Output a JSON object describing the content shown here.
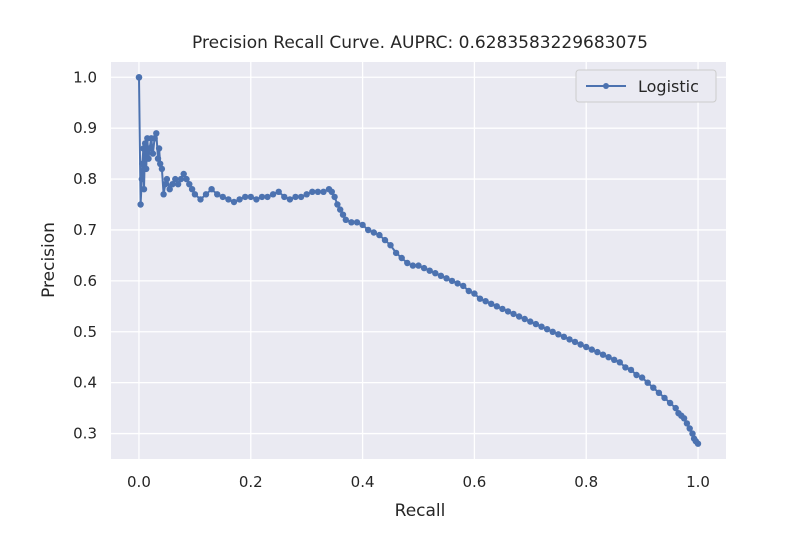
{
  "chart_data": {
    "type": "line",
    "title": "Precision Recall Curve. AUPRC: 0.6283583229683075",
    "xlabel": "Recall",
    "ylabel": "Precision",
    "xlim": [
      -0.05,
      1.05
    ],
    "ylim": [
      0.25,
      1.03
    ],
    "xticks": [
      0.0,
      0.2,
      0.4,
      0.6,
      0.8,
      1.0
    ],
    "xtick_labels": [
      "0.0",
      "0.2",
      "0.4",
      "0.6",
      "0.8",
      "1.0"
    ],
    "yticks": [
      0.3,
      0.4,
      0.5,
      0.6,
      0.7,
      0.8,
      0.9,
      1.0
    ],
    "ytick_labels": [
      "0.3",
      "0.4",
      "0.5",
      "0.6",
      "0.7",
      "0.8",
      "0.9",
      "1.0"
    ],
    "grid": true,
    "legend_position": "top-right",
    "colors": {
      "series": "#4c72b0",
      "background": "#eaeaf2",
      "grid": "#ffffff"
    },
    "series": [
      {
        "name": "Logistic",
        "marker": "circle",
        "x": [
          0.0,
          0.0,
          0.003,
          0.005,
          0.006,
          0.008,
          0.009,
          0.011,
          0.013,
          0.015,
          0.017,
          0.019,
          0.022,
          0.025,
          0.028,
          0.031,
          0.034,
          0.036,
          0.038,
          0.041,
          0.044,
          0.047,
          0.05,
          0.055,
          0.06,
          0.065,
          0.07,
          0.075,
          0.08,
          0.085,
          0.09,
          0.095,
          0.1,
          0.11,
          0.12,
          0.13,
          0.14,
          0.15,
          0.16,
          0.17,
          0.18,
          0.19,
          0.2,
          0.21,
          0.22,
          0.23,
          0.24,
          0.25,
          0.26,
          0.27,
          0.28,
          0.29,
          0.3,
          0.31,
          0.32,
          0.33,
          0.34,
          0.345,
          0.35,
          0.355,
          0.36,
          0.365,
          0.37,
          0.38,
          0.39,
          0.4,
          0.41,
          0.42,
          0.43,
          0.44,
          0.45,
          0.46,
          0.47,
          0.48,
          0.49,
          0.5,
          0.51,
          0.52,
          0.53,
          0.54,
          0.55,
          0.56,
          0.57,
          0.58,
          0.59,
          0.6,
          0.61,
          0.62,
          0.63,
          0.64,
          0.65,
          0.66,
          0.67,
          0.68,
          0.69,
          0.7,
          0.71,
          0.72,
          0.73,
          0.74,
          0.75,
          0.76,
          0.77,
          0.78,
          0.79,
          0.8,
          0.81,
          0.82,
          0.83,
          0.84,
          0.85,
          0.86,
          0.87,
          0.88,
          0.89,
          0.9,
          0.91,
          0.92,
          0.93,
          0.94,
          0.95,
          0.96,
          0.965,
          0.97,
          0.975,
          0.98,
          0.985,
          0.99,
          0.993,
          0.996,
          1.0
        ],
        "y": [
          1.0,
          1.0,
          0.75,
          0.8,
          0.83,
          0.86,
          0.78,
          0.87,
          0.82,
          0.88,
          0.84,
          0.86,
          0.88,
          0.85,
          0.88,
          0.89,
          0.84,
          0.86,
          0.83,
          0.82,
          0.77,
          0.79,
          0.8,
          0.78,
          0.79,
          0.8,
          0.79,
          0.8,
          0.81,
          0.8,
          0.79,
          0.78,
          0.77,
          0.76,
          0.77,
          0.78,
          0.77,
          0.765,
          0.76,
          0.755,
          0.76,
          0.765,
          0.765,
          0.76,
          0.765,
          0.765,
          0.77,
          0.775,
          0.765,
          0.76,
          0.765,
          0.765,
          0.77,
          0.775,
          0.775,
          0.775,
          0.78,
          0.775,
          0.765,
          0.75,
          0.74,
          0.73,
          0.72,
          0.715,
          0.715,
          0.71,
          0.7,
          0.695,
          0.69,
          0.68,
          0.67,
          0.655,
          0.645,
          0.635,
          0.63,
          0.63,
          0.625,
          0.62,
          0.615,
          0.61,
          0.605,
          0.6,
          0.595,
          0.59,
          0.58,
          0.575,
          0.565,
          0.56,
          0.555,
          0.55,
          0.545,
          0.54,
          0.535,
          0.53,
          0.525,
          0.52,
          0.515,
          0.51,
          0.505,
          0.5,
          0.495,
          0.49,
          0.485,
          0.48,
          0.475,
          0.47,
          0.465,
          0.46,
          0.455,
          0.45,
          0.445,
          0.44,
          0.43,
          0.425,
          0.415,
          0.41,
          0.4,
          0.39,
          0.38,
          0.37,
          0.36,
          0.35,
          0.34,
          0.335,
          0.33,
          0.32,
          0.31,
          0.3,
          0.29,
          0.285,
          0.28
        ]
      }
    ]
  }
}
